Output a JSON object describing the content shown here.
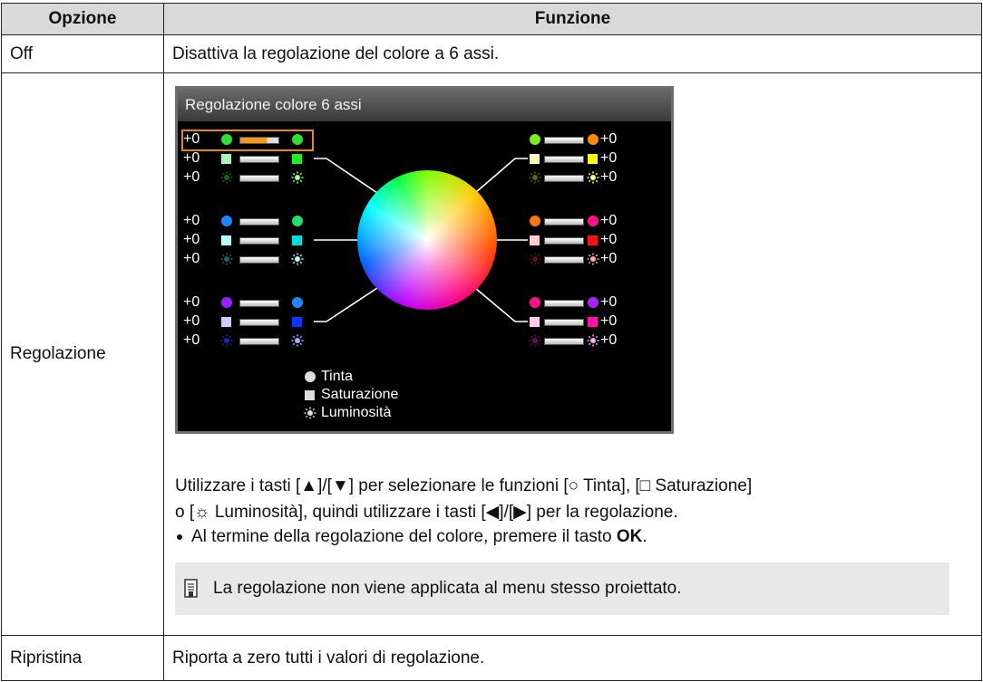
{
  "table": {
    "header": [
      "Opzione",
      "Funzione"
    ],
    "rows": [
      {
        "option": "Off",
        "function": "Disattiva la regolazione del colore a 6 assi."
      },
      {
        "option": "Regolazione",
        "screen": {
          "title": "Regolazione colore 6 assi",
          "left_values": [
            "+0",
            "+0",
            "+0",
            "+0",
            "+0",
            "+0",
            "+0",
            "+0",
            "+0"
          ],
          "right_values": [
            "+0",
            "+0",
            "+0",
            "+0",
            "+0",
            "+0",
            "+0",
            "+0",
            "+0"
          ],
          "legend": [
            "Tinta",
            "Saturazione",
            "Luminosità"
          ]
        },
        "instructions": [
          "Utilizzare i tasti [▲]/[▼] per selezionare le funzioni [○ Tinta], [□ Saturazione]",
          "o [☼ Luminosità], quindi utilizzare i tasti [◀]/[▶] per la regolazione."
        ],
        "bullet": {
          "text": "Al termine della regolazione del colore, premere il tasto ",
          "key": "OK",
          "end": "."
        },
        "note": "La regolazione non viene applicata al menu stesso proiettato."
      },
      {
        "option": "Ripristina",
        "function": "Riporta a zero tutti i valori di regolazione."
      }
    ]
  }
}
